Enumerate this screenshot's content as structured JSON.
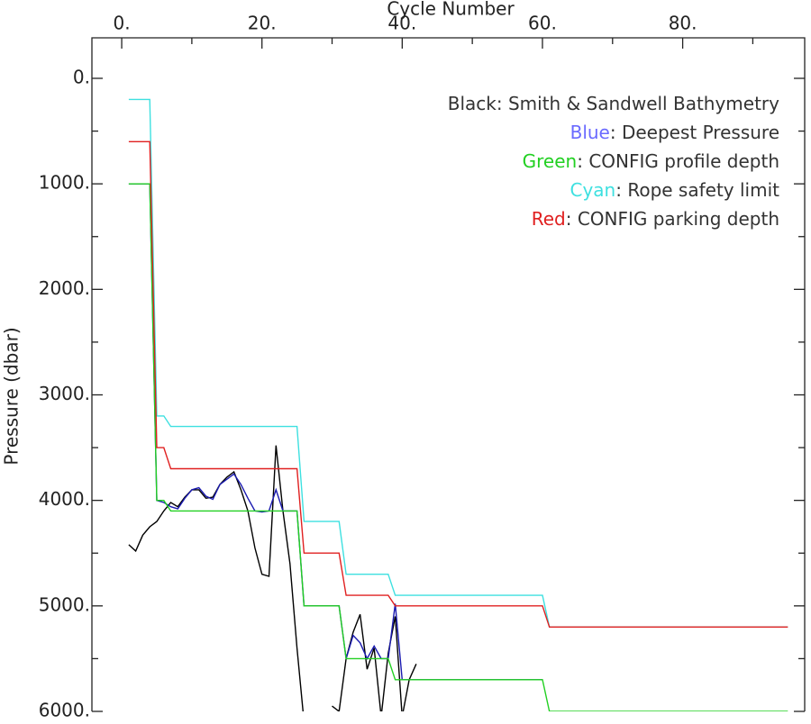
{
  "chart_data": {
    "type": "line",
    "x_label": "Cycle Number",
    "y_label": "Pressure (dbar)",
    "xlim": [
      -4.25,
      97.4
    ],
    "xticks": [
      {
        "value": 0,
        "label": "0."
      },
      {
        "value": 20,
        "label": "20."
      },
      {
        "value": 40,
        "label": "40."
      },
      {
        "value": 60,
        "label": "60."
      },
      {
        "value": 80,
        "label": "80."
      }
    ],
    "xminorticks": [
      10,
      30,
      50,
      70,
      90
    ],
    "ylim": [
      6000,
      -384
    ],
    "yticks": [
      {
        "value": 0,
        "label": "0."
      },
      {
        "value": 1000,
        "label": "1000."
      },
      {
        "value": 2000,
        "label": "2000."
      },
      {
        "value": 3000,
        "label": "3000."
      },
      {
        "value": 4000,
        "label": "4000."
      },
      {
        "value": 5000,
        "label": "5000."
      },
      {
        "value": 6000,
        "label": "6000."
      }
    ],
    "yminorticks": [
      500,
      1500,
      2500,
      3500,
      4500,
      5500
    ],
    "legend_separator": ": ",
    "series": [
      {
        "name": "Smith & Sandwell Bathymetry",
        "legend_color_word": "Black",
        "color": "#000000",
        "legend_color": "#333333",
        "x": [
          1,
          2,
          3,
          4,
          5,
          6,
          7,
          8,
          9,
          10,
          11,
          12,
          13,
          14,
          15,
          16,
          17,
          18,
          19,
          20,
          21,
          22,
          23,
          24,
          25,
          26,
          27,
          28,
          29,
          30,
          31,
          32,
          33,
          34,
          35,
          36,
          37,
          38,
          39,
          40,
          41,
          42
        ],
        "values": [
          4420,
          4480,
          4330,
          4250,
          4200,
          4100,
          4020,
          4060,
          3970,
          3900,
          3900,
          3980,
          3970,
          3850,
          3780,
          3730,
          3900,
          4100,
          4450,
          4700,
          4720,
          3480,
          4100,
          4600,
          5400,
          6100,
          null,
          null,
          null,
          5950,
          6000,
          5500,
          5250,
          5080,
          5600,
          5400,
          6050,
          5450,
          5100,
          6050,
          5700,
          5550
        ]
      },
      {
        "name": "Deepest Pressure",
        "legend_color_word": "Blue",
        "color": "#1a1ab0",
        "legend_color": "#6a6aff",
        "x": [
          1,
          4,
          5,
          6,
          7,
          8,
          9,
          10,
          11,
          12,
          13,
          14,
          15,
          16,
          17,
          18,
          19,
          20,
          21,
          22,
          23,
          24,
          25,
          26,
          31,
          32,
          33,
          34,
          35,
          36,
          37,
          38,
          39,
          40,
          60
        ],
        "values": [
          1000,
          1000,
          4000,
          4020,
          4060,
          4080,
          3980,
          3900,
          3880,
          3960,
          3990,
          3850,
          3800,
          3750,
          3850,
          3980,
          4100,
          4110,
          4100,
          3900,
          4100,
          4100,
          4100,
          5000,
          5000,
          5500,
          5280,
          5350,
          5500,
          5380,
          5500,
          5500,
          4980,
          5700,
          5700
        ]
      },
      {
        "name": "CONFIG profile depth",
        "legend_color_word": "Green",
        "color": "#22d022",
        "legend_color": "#22d022",
        "x": [
          1,
          4,
          5,
          6,
          7,
          25,
          26,
          31,
          32,
          38,
          39,
          60,
          61,
          95
        ],
        "values": [
          1000,
          1000,
          4000,
          4000,
          4100,
          4100,
          5000,
          5000,
          5500,
          5500,
          5700,
          5700,
          6000,
          6000
        ]
      },
      {
        "name": "Rope safety limit",
        "legend_color_word": "Cyan",
        "color": "#3ee0e0",
        "legend_color": "#3ee0e0",
        "x": [
          1,
          4,
          5,
          6,
          7,
          25,
          26,
          31,
          32,
          38,
          39,
          60,
          61,
          95
        ],
        "values": [
          200,
          200,
          3200,
          3200,
          3300,
          3300,
          4200,
          4200,
          4700,
          4700,
          4900,
          4900,
          5200,
          5200
        ]
      },
      {
        "name": "CONFIG parking depth",
        "legend_color_word": "Red",
        "color": "#e02020",
        "legend_color": "#e02020",
        "x": [
          1,
          4,
          5,
          6,
          7,
          25,
          26,
          31,
          32,
          38,
          39,
          60,
          61,
          95
        ],
        "values": [
          600,
          600,
          3500,
          3500,
          3700,
          3700,
          4500,
          4500,
          4900,
          4900,
          5000,
          5000,
          5200,
          5200
        ]
      }
    ]
  }
}
